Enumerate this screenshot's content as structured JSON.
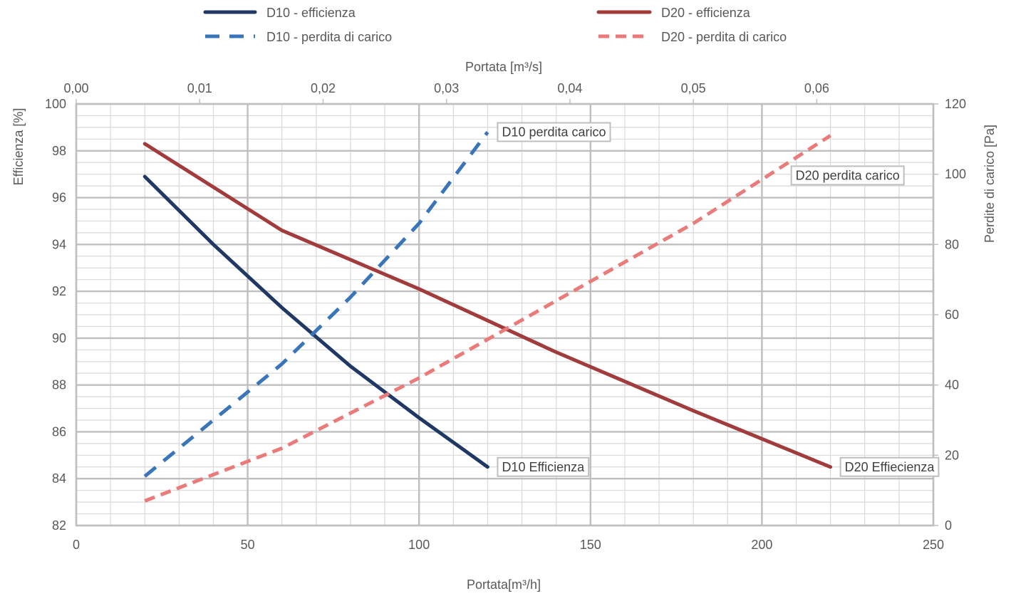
{
  "chart_data": {
    "type": "line",
    "legend": {
      "placement": "top",
      "entries": [
        {
          "label": "D10 - efficienza",
          "series": "D10 - efficienza"
        },
        {
          "label": "D10 - perdita di carico",
          "series": "D10 - perdita di carico"
        },
        {
          "label": "D20 - efficienza",
          "series": "D20 - efficienza"
        },
        {
          "label": "D20 - perdita di carico",
          "series": "D20 - perdita di carico"
        }
      ]
    },
    "x_axis_bottom": {
      "label": "Portata[m³/h]",
      "range": [
        0,
        250
      ],
      "ticks": [
        0,
        50,
        100,
        150,
        200,
        250
      ],
      "tick_labels": [
        "0",
        "50",
        "100",
        "150",
        "200",
        "250"
      ]
    },
    "x_axis_top": {
      "label": "Portata [m³/s]",
      "range": [
        0,
        0.069444
      ],
      "ticks": [
        0,
        0.01,
        0.02,
        0.03,
        0.04,
        0.05,
        0.06
      ],
      "tick_labels": [
        "0,00",
        "0,01",
        "0,02",
        "0,03",
        "0,04",
        "0,05",
        "0,06"
      ]
    },
    "y_axis_left": {
      "label": "Efficienza [%]",
      "range": [
        82,
        100
      ],
      "ticks": [
        82,
        84,
        86,
        88,
        90,
        92,
        94,
        96,
        98,
        100
      ],
      "tick_labels": [
        "82",
        "84",
        "86",
        "88",
        "90",
        "92",
        "94",
        "96",
        "98",
        "100"
      ]
    },
    "y_axis_right": {
      "label": "Perdite di carico [Pa]",
      "range": [
        0,
        120
      ],
      "ticks": [
        0,
        20,
        40,
        60,
        80,
        100,
        120
      ],
      "tick_labels": [
        "0",
        "20",
        "40",
        "60",
        "80",
        "100",
        "120"
      ]
    },
    "grid": {
      "major": true,
      "minor": true
    },
    "series": [
      {
        "name": "D10 - efficienza",
        "axis": "left",
        "color": "#203864",
        "dash": "solid",
        "x": [
          20,
          40,
          60,
          80,
          100,
          120
        ],
        "y": [
          96.9,
          94.0,
          91.3,
          88.8,
          86.6,
          84.5
        ]
      },
      {
        "name": "D10 - perdita di carico",
        "axis": "right",
        "color": "#3A75BA",
        "dash": "dash",
        "x": [
          20,
          40,
          60,
          80,
          100,
          120
        ],
        "y": [
          14,
          30,
          46,
          65,
          86,
          112
        ]
      },
      {
        "name": "D20 - efficienza",
        "axis": "left",
        "color": "#A23B3B",
        "dash": "solid",
        "x": [
          20,
          60,
          100,
          140,
          180,
          220
        ],
        "y": [
          98.3,
          94.6,
          92.1,
          89.4,
          86.9,
          84.5
        ]
      },
      {
        "name": "D20 - perdita di carico",
        "axis": "right",
        "color": "#EA7B7B",
        "dash": "dash",
        "x": [
          20,
          60,
          100,
          140,
          180,
          220
        ],
        "y": [
          7,
          22,
          42,
          64,
          86,
          111
        ]
      }
    ],
    "annotations": [
      {
        "text": "D10 perdita carico",
        "series": "D10 - perdita di carico",
        "anchor": "end"
      },
      {
        "text": "D20 perdita carico",
        "series": "D20 - perdita di carico",
        "anchor": "end"
      },
      {
        "text": "D10 Efficienza",
        "series": "D10 - efficienza",
        "anchor": "end"
      },
      {
        "text": "D20 Effiecienza",
        "series": "D20 - efficienza",
        "anchor": "end"
      }
    ]
  }
}
